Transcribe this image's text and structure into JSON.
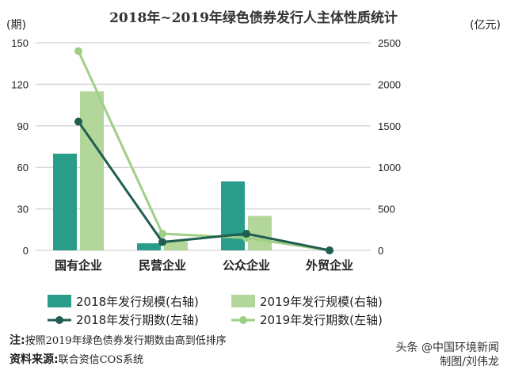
{
  "chart_data": {
    "type": "bar",
    "title": "2018年~2019年绿色债券发行人主体性质统计",
    "ylabel_left": "(期)",
    "ylabel_right": "(亿元)",
    "categories": [
      "国有企业",
      "民营企业",
      "公众企业",
      "外贸企业"
    ],
    "left_axis": {
      "range": [
        0,
        150
      ],
      "ticks": [
        "0",
        "30",
        "60",
        "90",
        "120",
        "150"
      ]
    },
    "right_axis": {
      "range": [
        0,
        2500
      ],
      "ticks": [
        "0",
        "500",
        "1000",
        "1500",
        "2000",
        "2500"
      ]
    },
    "grid": true,
    "series": [
      {
        "name": "2018年发行规模(右轴)",
        "kind": "bar",
        "axis": "right",
        "color": "#2a9d8a",
        "values": [
          1165,
          85,
          830,
          0
        ]
      },
      {
        "name": "2019年发行规模(右轴)",
        "kind": "bar",
        "axis": "right",
        "color": "#b3d69a",
        "values": [
          1915,
          110,
          415,
          0
        ]
      },
      {
        "name": "2018年发行期数(左轴)",
        "kind": "line",
        "axis": "left",
        "color": "#1f5e50",
        "values": [
          93,
          6,
          12,
          0
        ]
      },
      {
        "name": "2019年发行期数(左轴)",
        "kind": "line",
        "axis": "left",
        "color": "#9fcf84",
        "values": [
          144,
          12,
          9,
          0
        ]
      }
    ],
    "legend_position": "bottom"
  },
  "notes": {
    "note_label": "注:",
    "note_text": "按照2019年绿色债券发行期数由高到低排序",
    "source_label": "资料来源:",
    "source_text": "联合资信COS系统"
  },
  "watermark": {
    "line1": "头条 @中国环境新闻",
    "line2": "制图/刘伟龙"
  }
}
